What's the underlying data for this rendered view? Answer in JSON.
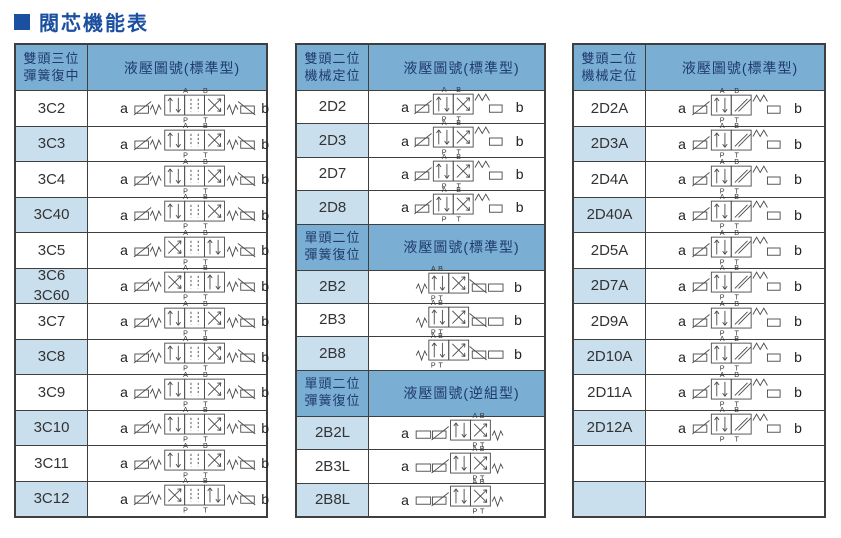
{
  "page_title": "閥芯機能表",
  "port_labels": {
    "a": "A",
    "b": "B",
    "p": "P",
    "t": "T"
  },
  "colors": {
    "title_blue": "#1b4fa0",
    "header_bg": "#7aaed3",
    "header_text": "#1e3a6e",
    "alt_row_bg": "#c9dfee",
    "border": "#3f3f3f",
    "symbol_stroke": "#4a4a4a"
  },
  "tables": [
    {
      "name": "double-head-three-position",
      "units": [
        {
          "kind": "header",
          "line1": "雙頭三位",
          "line2": "彈簧復中",
          "diagram": "液壓圖號(標準型)"
        },
        {
          "kind": "row",
          "code": "3C2",
          "a": "a",
          "b": "b",
          "sym": "v3",
          "alt": false
        },
        {
          "kind": "row",
          "code": "3C3",
          "a": "a",
          "b": "b",
          "sym": "v3",
          "alt": true
        },
        {
          "kind": "row",
          "code": "3C4",
          "a": "a",
          "b": "b",
          "sym": "v3",
          "alt": false
        },
        {
          "kind": "row",
          "code": "3C40",
          "a": "a",
          "b": "b",
          "sym": "v3",
          "alt": true
        },
        {
          "kind": "row",
          "code": "3C5",
          "a": "a",
          "b": "b",
          "sym": "v3x",
          "alt": false
        },
        {
          "kind": "row",
          "code": "3C6",
          "code2": "3C60",
          "a": "a",
          "b": "b",
          "sym": "v3x",
          "alt": true
        },
        {
          "kind": "row",
          "code": "3C7",
          "a": "a",
          "b": "b",
          "sym": "v3",
          "alt": false
        },
        {
          "kind": "row",
          "code": "3C8",
          "a": "a",
          "b": "b",
          "sym": "v3",
          "alt": true
        },
        {
          "kind": "row",
          "code": "3C9",
          "a": "a",
          "b": "b",
          "sym": "v3",
          "alt": false
        },
        {
          "kind": "row",
          "code": "3C10",
          "a": "a",
          "b": "b",
          "sym": "v3",
          "alt": true
        },
        {
          "kind": "row",
          "code": "3C11",
          "a": "a",
          "b": "b",
          "sym": "v3",
          "alt": false
        },
        {
          "kind": "row",
          "code": "3C12",
          "a": "a",
          "b": "b",
          "sym": "v3x",
          "alt": true
        }
      ]
    },
    {
      "name": "double-and-single-head-two-position",
      "units": [
        {
          "kind": "header",
          "line1": "雙頭二位",
          "line2": "機械定位",
          "diagram": "液壓圖號(標準型)"
        },
        {
          "kind": "row",
          "code": "2D2",
          "a": "a",
          "b": "b",
          "sym": "v2d",
          "alt": false
        },
        {
          "kind": "row",
          "code": "2D3",
          "a": "a",
          "b": "b",
          "sym": "v2d",
          "alt": true
        },
        {
          "kind": "row",
          "code": "2D7",
          "a": "a",
          "b": "b",
          "sym": "v2d",
          "alt": false
        },
        {
          "kind": "row",
          "code": "2D8",
          "a": "a",
          "b": "b",
          "sym": "v2d",
          "alt": true
        },
        {
          "kind": "header",
          "line1": "單頭二位",
          "line2": "彈簧復位",
          "diagram": "液壓圖號(標準型)"
        },
        {
          "kind": "row",
          "code": "2B2",
          "a": "",
          "b": "b",
          "sym": "v2b",
          "alt": true
        },
        {
          "kind": "row",
          "code": "2B3",
          "a": "",
          "b": "b",
          "sym": "v2b",
          "alt": false
        },
        {
          "kind": "row",
          "code": "2B8",
          "a": "",
          "b": "b",
          "sym": "v2b",
          "alt": true
        },
        {
          "kind": "header",
          "line1": "單頭二位",
          "line2": "彈簧復位",
          "diagram": "液壓圖號(逆組型)"
        },
        {
          "kind": "row",
          "code": "2B2L",
          "a": "a",
          "b": "",
          "sym": "v2bl",
          "alt": true
        },
        {
          "kind": "row",
          "code": "2B3L",
          "a": "a",
          "b": "",
          "sym": "v2bl",
          "alt": false
        },
        {
          "kind": "row",
          "code": "2B8L",
          "a": "a",
          "b": "",
          "sym": "v2bl",
          "alt": true
        }
      ]
    },
    {
      "name": "double-head-two-position-a-series",
      "units": [
        {
          "kind": "header",
          "line1": "雙頭二位",
          "line2": "機械定位",
          "diagram": "液壓圖號(標準型)"
        },
        {
          "kind": "row",
          "code": "2D2A",
          "a": "a",
          "b": "b",
          "sym": "v2da",
          "alt": false
        },
        {
          "kind": "row",
          "code": "2D3A",
          "a": "a",
          "b": "b",
          "sym": "v2da",
          "alt": true
        },
        {
          "kind": "row",
          "code": "2D4A",
          "a": "a",
          "b": "b",
          "sym": "v2da",
          "alt": false
        },
        {
          "kind": "row",
          "code": "2D40A",
          "a": "a",
          "b": "b",
          "sym": "v2da",
          "alt": true
        },
        {
          "kind": "row",
          "code": "2D5A",
          "a": "a",
          "b": "b",
          "sym": "v2da",
          "alt": false
        },
        {
          "kind": "row",
          "code": "2D7A",
          "a": "a",
          "b": "b",
          "sym": "v2da",
          "alt": true
        },
        {
          "kind": "row",
          "code": "2D9A",
          "a": "a",
          "b": "b",
          "sym": "v2da",
          "alt": false
        },
        {
          "kind": "row",
          "code": "2D10A",
          "a": "a",
          "b": "b",
          "sym": "v2da",
          "alt": true
        },
        {
          "kind": "row",
          "code": "2D11A",
          "a": "a",
          "b": "b",
          "sym": "v2da",
          "alt": false
        },
        {
          "kind": "row",
          "code": "2D12A",
          "a": "a",
          "b": "b",
          "sym": "v2da",
          "alt": true
        },
        {
          "kind": "row",
          "code": "",
          "a": "",
          "b": "",
          "sym": "",
          "alt": false
        },
        {
          "kind": "row",
          "code": "",
          "a": "",
          "b": "",
          "sym": "",
          "alt": true
        }
      ]
    }
  ]
}
